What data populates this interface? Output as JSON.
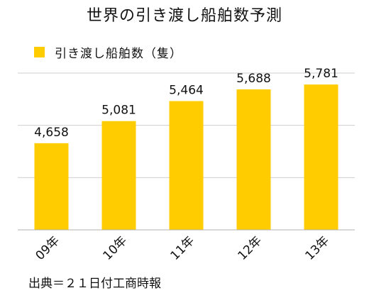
{
  "chart_data": {
    "type": "bar",
    "title": "世界の引き渡し船舶数予測",
    "categories": [
      "09年",
      "10年",
      "11年",
      "12年",
      "13年"
    ],
    "series": [
      {
        "name": "引き渡し船舶数（隻）",
        "values": [
          4658,
          5081,
          5464,
          5688,
          5781
        ]
      }
    ],
    "value_labels": [
      "4,658",
      "5,081",
      "5,464",
      "5,688",
      "5,781"
    ],
    "ylim": [
      3000,
      6000
    ],
    "grid": true,
    "y_tick_labels_visible": false,
    "legend_position": "top-left",
    "bar_color": "#ffcc00",
    "source": "出典＝２１日付工商時報"
  }
}
